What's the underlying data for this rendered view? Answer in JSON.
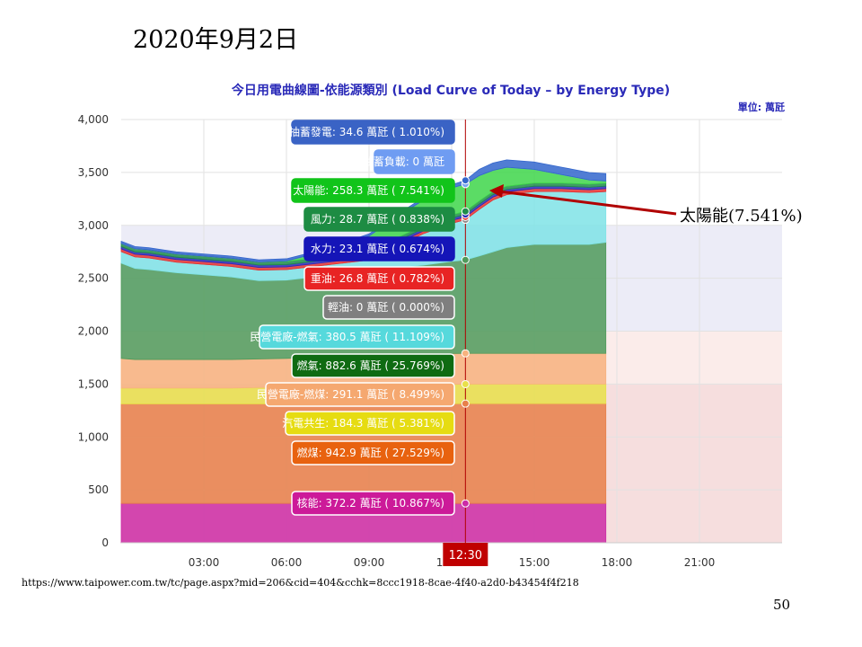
{
  "slide": {
    "date": "2020年9月2日",
    "callout": "太陽能(7.541%)",
    "source_url": "https://www.taipower.com.tw/tc/page.aspx?mid=206&cid=404&cchk=8ccc1918-8cae-4f40-a2d0-b43454f4f218",
    "page_number": "50"
  },
  "chart_data": {
    "type": "area",
    "title": "今日用電曲線圖-依能源類別 (Load Curve of Today – by Energy Type)",
    "unit": "單位: 萬瓩",
    "x_ticks": [
      "03:00",
      "06:00",
      "09:00",
      "12:00",
      "15:00",
      "18:00",
      "21:00"
    ],
    "y_ticks": [
      0,
      500,
      1000,
      1500,
      2000,
      2500,
      3000,
      3500,
      4000
    ],
    "ylim": [
      0,
      4000
    ],
    "xlim_hours": [
      0,
      24
    ],
    "cursor": {
      "label": "12:30",
      "hour": 12.5
    },
    "x_hours": [
      0,
      0.5,
      1,
      2,
      3,
      4,
      5,
      6,
      7,
      8,
      9,
      10,
      11,
      12,
      12.5,
      13,
      13.5,
      14,
      15,
      16,
      17,
      17.6
    ],
    "series": [
      {
        "name": "核能",
        "color": "#cc2ba6",
        "values": [
          372,
          372,
          372,
          372,
          372,
          372,
          372,
          372,
          372,
          372,
          372,
          372,
          372,
          372,
          372,
          372,
          372,
          372,
          372,
          372,
          372,
          372
        ]
      },
      {
        "name": "燃煤",
        "color": "#e8804a",
        "values": [
          940,
          940,
          940,
          940,
          940,
          940,
          940,
          940,
          940,
          940,
          940,
          940,
          940,
          942,
          943,
          943,
          943,
          943,
          943,
          943,
          943,
          943
        ]
      },
      {
        "name": "汽電共生",
        "color": "#e8e04a",
        "values": [
          150,
          150,
          150,
          150,
          150,
          150,
          155,
          160,
          165,
          170,
          175,
          180,
          182,
          184,
          184,
          184,
          184,
          184,
          184,
          184,
          184,
          184
        ]
      },
      {
        "name": "民營電廠-燃煤",
        "color": "#f7b27e",
        "values": [
          280,
          270,
          270,
          270,
          270,
          270,
          270,
          270,
          275,
          280,
          285,
          290,
          290,
          291,
          291,
          291,
          291,
          291,
          291,
          291,
          291,
          291
        ]
      },
      {
        "name": "燃氣",
        "color": "#4f9a5a",
        "values": [
          900,
          860,
          850,
          820,
          800,
          780,
          740,
          740,
          760,
          780,
          800,
          820,
          840,
          870,
          883,
          920,
          960,
          1000,
          1030,
          1030,
          1030,
          1050
        ]
      },
      {
        "name": "民營電廠-燃氣",
        "color": "#7fe3e6",
        "values": [
          110,
          110,
          110,
          100,
          100,
          100,
          100,
          100,
          100,
          100,
          100,
          200,
          300,
          360,
          380,
          440,
          490,
          500,
          500,
          500,
          490,
          480
        ]
      },
      {
        "name": "輕油",
        "color": "#8c8c8c",
        "values": [
          0,
          0,
          0,
          0,
          0,
          0,
          0,
          0,
          0,
          0,
          0,
          0,
          0,
          0,
          0,
          0,
          0,
          0,
          0,
          0,
          0,
          0
        ]
      },
      {
        "name": "重油",
        "color": "#e63333",
        "values": [
          25,
          25,
          25,
          25,
          25,
          25,
          25,
          25,
          25,
          25,
          25,
          25,
          26,
          27,
          27,
          27,
          27,
          27,
          27,
          27,
          27,
          27
        ]
      },
      {
        "name": "水力",
        "color": "#2a2ab8",
        "values": [
          22,
          22,
          22,
          22,
          22,
          22,
          22,
          22,
          22,
          22,
          22,
          22,
          23,
          23,
          23,
          23,
          23,
          23,
          23,
          23,
          23,
          23
        ]
      },
      {
        "name": "風力",
        "color": "#1e8c4a",
        "values": [
          30,
          30,
          30,
          30,
          30,
          30,
          30,
          30,
          30,
          30,
          30,
          30,
          29,
          29,
          29,
          29,
          29,
          29,
          29,
          29,
          29,
          29
        ]
      },
      {
        "name": "太陽能",
        "color": "#3ed64a",
        "values": [
          0,
          0,
          0,
          0,
          0,
          0,
          0,
          5,
          40,
          90,
          150,
          200,
          240,
          255,
          258,
          240,
          200,
          180,
          130,
          80,
          40,
          20
        ]
      },
      {
        "name": "抽蓄負載",
        "color": "#7aa6f0",
        "values": [
          0,
          0,
          0,
          0,
          0,
          0,
          0,
          0,
          0,
          0,
          0,
          0,
          0,
          0,
          0,
          0,
          0,
          0,
          0,
          0,
          0,
          0
        ]
      },
      {
        "name": "抽蓄發電",
        "color": "#3366cc",
        "values": [
          20,
          20,
          20,
          20,
          20,
          20,
          20,
          20,
          20,
          20,
          20,
          20,
          25,
          30,
          35,
          60,
          70,
          70,
          70,
          70,
          70,
          70
        ]
      }
    ],
    "tooltips": [
      {
        "name": "抽蓄發電",
        "label": "抽蓄發電: 34.6 萬瓩 ( 1.010%)",
        "color": "#3a63c5",
        "border": "#3a63c5"
      },
      {
        "name": "抽蓄負載",
        "label": "抽蓄負載: 0 萬瓩",
        "color": "#6f9cf2",
        "border": "#6f9cf2"
      },
      {
        "name": "太陽能",
        "label": "太陽能: 258.3 萬瓩 ( 7.541%)",
        "color": "#11c41a",
        "border": "#11c41a"
      },
      {
        "name": "風力",
        "label": "風力: 28.7 萬瓩 ( 0.838%)",
        "color": "#1d8c43",
        "border": "#1d8c43"
      },
      {
        "name": "水力",
        "label": "水力: 23.1 萬瓩 ( 0.674%)",
        "color": "#1515b8",
        "border": "#1515b8"
      },
      {
        "name": "重油",
        "label": "重油: 26.8 萬瓩 ( 0.782%)",
        "color": "#e82424",
        "border": "#ffffff"
      },
      {
        "name": "輕油",
        "label": "輕油: 0 萬瓩 ( 0.000%)",
        "color": "#7f7f7f",
        "border": "#ffffff"
      },
      {
        "name": "民營電廠-燃氣",
        "label": "民營電廠-燃氣: 380.5 萬瓩 ( 11.109%)",
        "color": "#56d9dc",
        "border": "#ffffff"
      },
      {
        "name": "燃氣",
        "label": "燃氣: 882.6 萬瓩 ( 25.769%)",
        "color": "#0f6b12",
        "border": "#ffffff"
      },
      {
        "name": "民營電廠-燃煤",
        "label": "民營電廠-燃煤: 291.1 萬瓩 ( 8.499%)",
        "color": "#f5a870",
        "border": "#ffffff"
      },
      {
        "name": "汽電共生",
        "label": "汽電共生: 184.3 萬瓩 ( 5.381%)",
        "color": "#e6dc12",
        "border": "#ffffff"
      },
      {
        "name": "燃煤",
        "label": "燃煤: 942.9 萬瓩 ( 27.529%)",
        "color": "#e8620f",
        "border": "#ffffff"
      },
      {
        "name": "核能",
        "label": "核能: 372.2 萬瓩 ( 10.867%)",
        "color": "#cc1a99",
        "border": "#ffffff"
      }
    ],
    "background_bands": [
      {
        "from": 0,
        "to": 1500,
        "color": "#f6dede"
      },
      {
        "from": 1500,
        "to": 2000,
        "color": "#fbecea"
      },
      {
        "from": 2000,
        "to": 3000,
        "color": "#ececf7"
      },
      {
        "from": 3000,
        "to": 4000,
        "color": "#ffffff"
      }
    ]
  }
}
